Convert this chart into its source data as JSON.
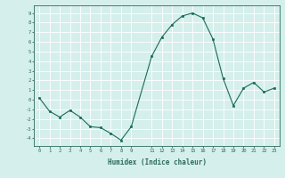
{
  "xlabel": "Humidex (Indice chaleur)",
  "ylabel": "",
  "x": [
    0,
    1,
    2,
    3,
    4,
    5,
    6,
    7,
    8,
    9,
    11,
    12,
    13,
    14,
    15,
    16,
    17,
    18,
    19,
    20,
    21,
    22,
    23
  ],
  "y": [
    0.2,
    -1.2,
    -1.8,
    -1.1,
    -1.8,
    -2.8,
    -2.9,
    -3.5,
    -4.2,
    -2.8,
    4.5,
    6.5,
    7.8,
    8.7,
    9.0,
    8.5,
    6.3,
    2.2,
    -0.6,
    1.2,
    1.8,
    0.8,
    1.2
  ],
  "line_color": "#1a6b5a",
  "marker_color": "#1a6b5a",
  "bg_color": "#d5efec",
  "grid_color": "#ffffff",
  "axis_color": "#2d6b5a",
  "tick_label_color": "#2d6b5a",
  "xticks": [
    0,
    1,
    2,
    3,
    4,
    5,
    6,
    7,
    8,
    9,
    11,
    12,
    13,
    14,
    15,
    16,
    17,
    18,
    19,
    20,
    21,
    22,
    23
  ],
  "yticks": [
    -4,
    -3,
    -2,
    -1,
    0,
    1,
    2,
    3,
    4,
    5,
    6,
    7,
    8,
    9
  ],
  "xlim": [
    -0.5,
    23.5
  ],
  "ylim": [
    -4.8,
    9.8
  ]
}
